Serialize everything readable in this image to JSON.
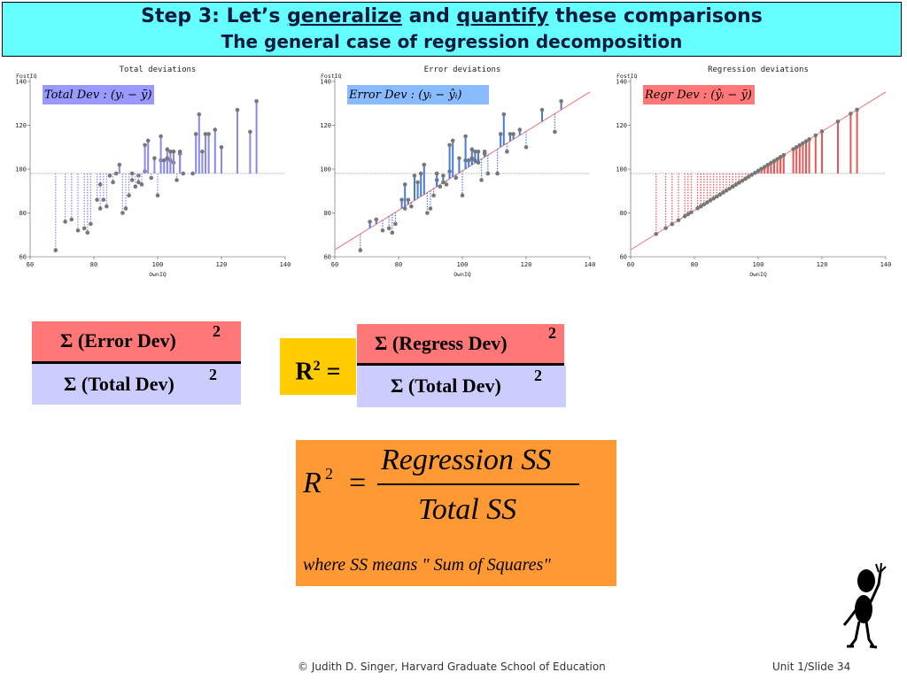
{
  "header": {
    "line1_part1": "Step 3: Let’s ",
    "line1_u1": "generalize",
    "line1_part2": " and ",
    "line1_u2": "quantify",
    "line1_part3": " these comparisons",
    "line2": "The general case of regression decomposition"
  },
  "charts": {
    "panel1": {
      "title": "Total deviations",
      "formula": "Total Dev : (yᵢ − ȳ)",
      "formula_bg": "#9999ff",
      "line_color": "#8888ee",
      "style": "total"
    },
    "panel2": {
      "title": "Error deviations",
      "formula": "Error Dev : (yᵢ − ŷᵢ)",
      "formula_bg": "#88bbff",
      "line_color": "#4a7ad8",
      "style": "error"
    },
    "panel3": {
      "title": "Regression deviations",
      "formula": "Regr Dev : (ŷᵢ − ȳ)",
      "formula_bg": "#ff7777",
      "line_color": "#ee5555",
      "style": "regr"
    }
  },
  "chart_data": {
    "type": "scatter",
    "xlabel": "OwnIQ",
    "ylabel": "FostIQ",
    "xlim": [
      60,
      140
    ],
    "ylim": [
      60,
      140
    ],
    "xticks": [
      60,
      80,
      100,
      120,
      140
    ],
    "yticks": [
      60,
      80,
      100,
      120,
      140
    ],
    "mean_y": 98,
    "regression": {
      "intercept": 9.2,
      "slope": 0.9
    },
    "x": [
      68,
      71,
      73,
      75,
      77,
      78,
      79,
      81,
      82,
      82,
      83,
      84,
      85,
      86,
      87,
      88,
      89,
      90,
      91,
      92,
      92,
      93,
      94,
      94,
      95,
      96,
      96,
      97,
      98,
      99,
      100,
      101,
      101,
      102,
      103,
      103,
      104,
      104,
      105,
      105,
      106,
      107,
      107,
      108,
      111,
      112,
      113,
      114,
      115,
      116,
      118,
      120,
      125,
      129,
      131
    ],
    "y": [
      63,
      76,
      77,
      72,
      73,
      71,
      75,
      86,
      82,
      93,
      86,
      83,
      97,
      94,
      98,
      102,
      80,
      82,
      88,
      95,
      98,
      92,
      97,
      94,
      93,
      99,
      111,
      113,
      96,
      105,
      88,
      104,
      115,
      104,
      109,
      105,
      104,
      108,
      103,
      108,
      95,
      107,
      108,
      98,
      98,
      116,
      125,
      108,
      116,
      116,
      118,
      110,
      127,
      117,
      131
    ]
  },
  "fraction1": {
    "numerator": "Σ (Error Dev)",
    "denominator": "Σ (Total Dev)",
    "exp": "2"
  },
  "r2_label": "R",
  "r2_sup": "2",
  "r2_eq": " =",
  "fraction2": {
    "numerator": "Σ (Regress Dev)",
    "denominator": "Σ (Total Dev)",
    "exp": "2"
  },
  "orange_box": {
    "lhs": "R",
    "lhs_sup": "2",
    "eq": "=",
    "numerator": "Regression SS",
    "denominator": "Total SS",
    "note": "where SS means \" Sum of  Squares\""
  },
  "footer": {
    "left": "© Judith D. Singer, Harvard Graduate School of Education",
    "right": "Unit 1/Slide 34"
  }
}
